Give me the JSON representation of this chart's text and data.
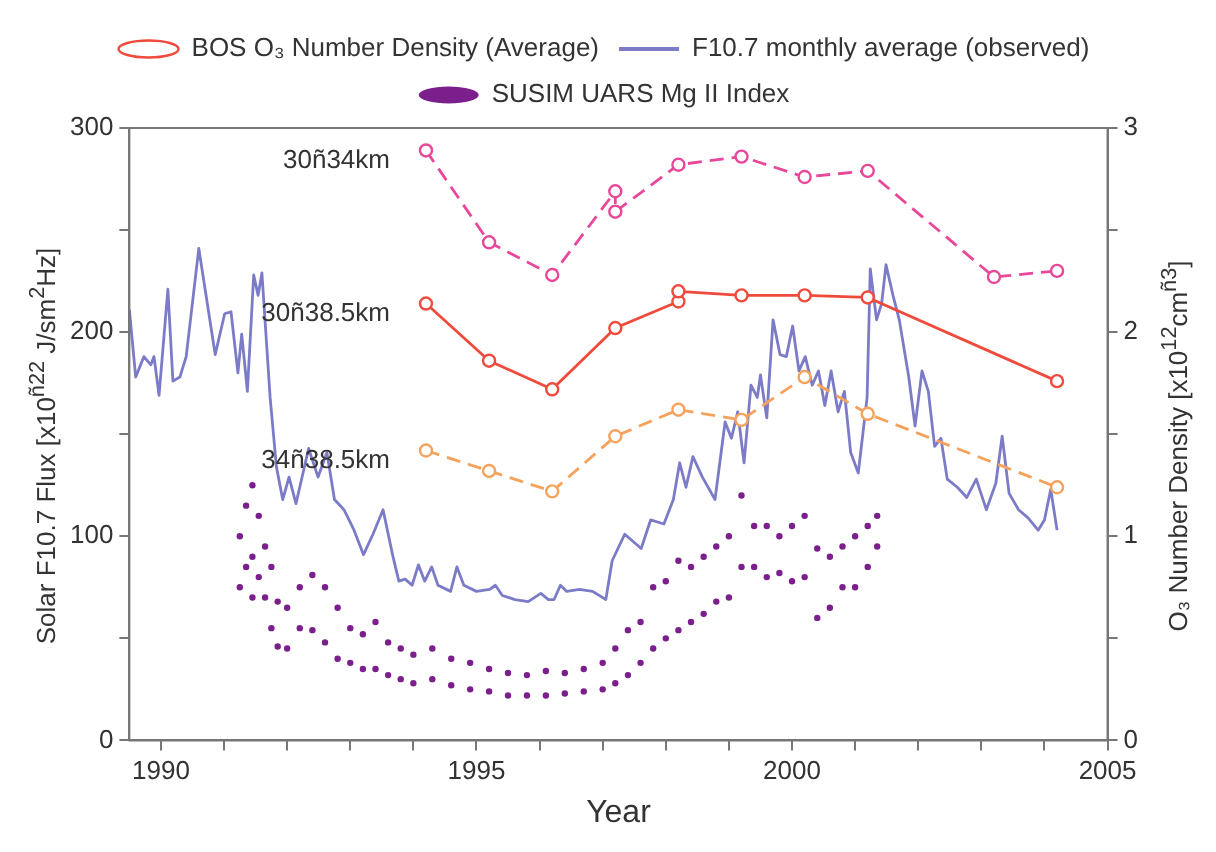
{
  "chart_data": {
    "type": "line",
    "xlabel": "Year",
    "ylabel": "Solar F10.7 Flux [x10$^{ñ22}$ J/sm$^{2}$Hz]",
    "y2label": "O₃ Number Density [x10$^{12}$cm$^{ñ3}$]",
    "xlim": [
      1989.5,
      2005
    ],
    "xticks": [
      1990,
      {
        "value": 1991,
        "label": null
      },
      {
        "value": 1992,
        "label": null
      },
      {
        "value": 1993,
        "label": null
      },
      {
        "value": 1994,
        "label": null
      },
      1995,
      {
        "value": 1996,
        "label": null
      },
      {
        "value": 1997,
        "label": null
      },
      {
        "value": 1998,
        "label": null
      },
      {
        "value": 1999,
        "label": null
      },
      2000,
      {
        "value": 2001,
        "label": null
      },
      {
        "value": 2002,
        "label": null
      },
      {
        "value": 2003,
        "label": null
      },
      {
        "value": 2004,
        "label": null
      },
      2005
    ],
    "ylim": [
      0,
      300
    ],
    "yticks": [
      0,
      {
        "value": 50,
        "label": null
      },
      100,
      {
        "value": 150,
        "label": null
      },
      200,
      {
        "value": 250,
        "label": null
      },
      300
    ],
    "y2lim": [
      0,
      3
    ],
    "y2ticks": [
      0,
      {
        "value": 0.5,
        "label": null
      },
      1,
      {
        "value": 1.5,
        "label": null
      },
      2,
      {
        "value": 2.5,
        "label": null
      },
      3
    ],
    "legend": "top",
    "annotations": [
      "30ñ34km",
      "30ñ38.5km",
      "34ñ38.5km"
    ],
    "series": [
      {
        "name": "BOS O₃ Number Density (Average)",
        "axis": "y2",
        "color": "#f04a3c",
        "marker": "circle",
        "line_style": "solid",
        "x": [
          1994.2,
          1995.2,
          1996.2,
          1997.2,
          1998.2,
          1998.2,
          1999.2,
          2000.2,
          2001.2,
          2004.2
        ],
        "values": [
          2.14,
          1.86,
          1.72,
          2.02,
          2.15,
          2.2,
          2.18,
          2.18,
          2.17,
          1.76
        ]
      },
      {
        "name": "F10.7 monthly average (observed)",
        "color": "#7b7bc8",
        "marker": "none",
        "line_style": "solid",
        "x": [
          1989.5,
          1989.6,
          1989.73,
          1989.84,
          1989.89,
          1989.97,
          1990.11,
          1990.19,
          1990.3,
          1990.4,
          1990.6,
          1990.86,
          1991.01,
          1991.11,
          1991.22,
          1991.28,
          1991.37,
          1991.47,
          1991.54,
          1991.6,
          1991.73,
          1991.83,
          1991.93,
          1992.03,
          1992.14,
          1992.34,
          1992.49,
          1992.63,
          1992.75,
          1992.9,
          1993.06,
          1993.21,
          1993.36,
          1993.52,
          1993.67,
          1993.77,
          1993.87,
          1993.98,
          1994.08,
          1994.18,
          1994.29,
          1994.39,
          1994.59,
          1994.69,
          1994.8,
          1995.0,
          1995.21,
          1995.3,
          1995.41,
          1995.61,
          1995.82,
          1996.02,
          1996.14,
          1996.23,
          1996.33,
          1996.43,
          1996.63,
          1996.84,
          1997.05,
          1997.15,
          1997.35,
          1997.61,
          1997.76,
          1997.97,
          1998.12,
          1998.22,
          1998.32,
          1998.43,
          1998.58,
          1998.78,
          1998.94,
          1999.04,
          1999.14,
          1999.24,
          1999.35,
          1999.45,
          1999.5,
          1999.6,
          1999.7,
          1999.81,
          1999.91,
          2000.01,
          2000.11,
          2000.21,
          2000.32,
          2000.42,
          2000.52,
          2000.62,
          2000.73,
          2000.83,
          2000.93,
          2001.05,
          2001.19,
          2001.24,
          2001.34,
          2001.42,
          2001.49,
          2001.6,
          2001.7,
          2001.85,
          2001.95,
          2002.06,
          2002.16,
          2002.26,
          2002.36,
          2002.46,
          2002.62,
          2002.77,
          2002.92,
          2003.08,
          2003.23,
          2003.33,
          2003.44,
          2003.59,
          2003.74,
          2003.9,
          2004.0,
          2004.1,
          2004.2
        ],
        "values": [
          211,
          178,
          188,
          184,
          188,
          169,
          221,
          176,
          178,
          188,
          241,
          189,
          209,
          210,
          180,
          199,
          171,
          228,
          218,
          229,
          168,
          134,
          118,
          129,
          116,
          143,
          129,
          141,
          118,
          113,
          103,
          91,
          101,
          113,
          91,
          78,
          79,
          76,
          86,
          78,
          85,
          76,
          73,
          85,
          76,
          73,
          74,
          76,
          71,
          69,
          68,
          72,
          69,
          69,
          76,
          73,
          74,
          73,
          69,
          88,
          101,
          94,
          108,
          106,
          118,
          136,
          124,
          139,
          129,
          118,
          156,
          148,
          161,
          136,
          174,
          168,
          179,
          158,
          206,
          189,
          188,
          203,
          181,
          188,
          174,
          181,
          164,
          181,
          161,
          171,
          141,
          131,
          168,
          231,
          206,
          214,
          233,
          218,
          206,
          178,
          154,
          181,
          171,
          144,
          148,
          128,
          124,
          119,
          128,
          113,
          126,
          149,
          121,
          113,
          109,
          103,
          108,
          123,
          103
        ]
      },
      {
        "name": "SUSIM UARS Mg II Index",
        "type": "scatter",
        "color": "#7a1f8c",
        "marker": "circle",
        "x": [
          1991.25,
          1991.25,
          1991.35,
          1991.35,
          1991.45,
          1991.45,
          1991.45,
          1991.55,
          1991.55,
          1991.65,
          1991.65,
          1991.75,
          1991.75,
          1991.85,
          1991.85,
          1992.0,
          1992.0,
          1992.2,
          1992.2,
          1992.4,
          1992.4,
          1992.6,
          1992.6,
          1992.8,
          1992.8,
          1993.0,
          1993.0,
          1993.2,
          1993.2,
          1993.4,
          1993.4,
          1993.6,
          1993.6,
          1993.8,
          1993.8,
          1994.0,
          1994.0,
          1994.3,
          1994.3,
          1994.6,
          1994.6,
          1994.9,
          1994.9,
          1995.2,
          1995.2,
          1995.5,
          1995.5,
          1995.8,
          1995.8,
          1996.1,
          1996.1,
          1996.4,
          1996.4,
          1996.7,
          1996.7,
          1997.0,
          1997.0,
          1997.2,
          1997.2,
          1997.4,
          1997.4,
          1997.6,
          1997.6,
          1997.8,
          1997.8,
          1998.0,
          1998.0,
          1998.2,
          1998.2,
          1998.4,
          1998.4,
          1998.6,
          1998.6,
          1998.8,
          1998.8,
          1999.0,
          1999.0,
          1999.2,
          1999.2,
          1999.4,
          1999.4,
          1999.6,
          1999.6,
          1999.8,
          1999.8,
          2000.0,
          2000.0,
          2000.2,
          2000.2,
          2000.4,
          2000.4,
          2000.6,
          2000.6,
          2000.8,
          2000.8,
          2001.0,
          2001.0,
          2001.2,
          2001.2,
          2001.35,
          2001.35
        ],
        "values": [
          100,
          75,
          115,
          85,
          125,
          90,
          70,
          110,
          80,
          95,
          70,
          85,
          55,
          68,
          46,
          65,
          45,
          75,
          55,
          81,
          54,
          75,
          48,
          65,
          40,
          55,
          38,
          52,
          35,
          58,
          35,
          48,
          32,
          45,
          30,
          42,
          28,
          45,
          30,
          40,
          27,
          38,
          25,
          35,
          24,
          33,
          22,
          32,
          22,
          34,
          22,
          33,
          23,
          35,
          24,
          38,
          25,
          45,
          28,
          54,
          32,
          58,
          38,
          75,
          45,
          78,
          50,
          88,
          54,
          85,
          58,
          90,
          62,
          95,
          68,
          100,
          70,
          120,
          85,
          105,
          85,
          105,
          80,
          100,
          82,
          105,
          78,
          110,
          80,
          94,
          60,
          90,
          65,
          95,
          75,
          100,
          75,
          105,
          85,
          110,
          95
        ]
      },
      {
        "axis": "y2",
        "color": "#e8479a",
        "marker": "circle",
        "line_style": "dashed",
        "x": [
          1994.2,
          1995.2,
          1996.2,
          1997.2,
          1997.2,
          1998.2,
          1999.2,
          2000.2,
          2001.2,
          2003.2,
          2004.2
        ],
        "values": [
          2.89,
          2.44,
          2.28,
          2.69,
          2.59,
          2.82,
          2.86,
          2.76,
          2.79,
          2.27,
          2.3
        ]
      },
      {
        "axis": "y2",
        "color": "#f5a35c",
        "marker": "circle",
        "line_style": "dashed",
        "x": [
          1994.2,
          1995.2,
          1996.2,
          1997.2,
          1998.2,
          1999.2,
          2000.2,
          2001.2,
          2004.2
        ],
        "values": [
          1.42,
          1.32,
          1.22,
          1.49,
          1.62,
          1.57,
          1.78,
          1.6,
          1.24
        ]
      }
    ]
  }
}
